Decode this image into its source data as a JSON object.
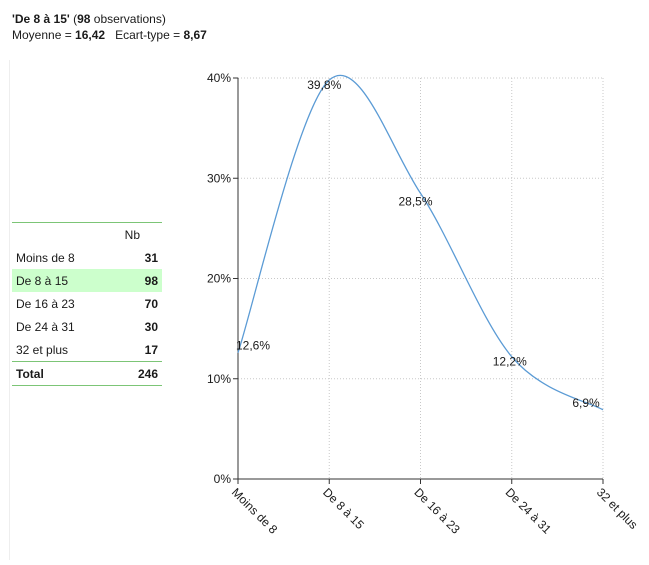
{
  "header": {
    "title_bold": "'De 8 à 15'",
    "title_paren_open": " (",
    "title_count": "98",
    "title_obs": " observations)",
    "mean_label": "Moyenne = ",
    "mean_value": "16,42",
    "sd_label": "Ecart-type = ",
    "sd_value": "8,67"
  },
  "table": {
    "col_header": "Nb",
    "rows": [
      {
        "label": "Moins de 8",
        "value": "31"
      },
      {
        "label": "De 8 à 15",
        "value": "98"
      },
      {
        "label": "De 16 à 23",
        "value": "70"
      },
      {
        "label": "De 24 à 31",
        "value": "30"
      },
      {
        "label": "32 et plus",
        "value": "17"
      }
    ],
    "highlight_index": 1,
    "total_label": "Total",
    "total_value": "246"
  },
  "chart_data": {
    "type": "line",
    "smooth": true,
    "categories": [
      "Moins de 8",
      "De 8 à 15",
      "De 16 à 23",
      "De 24 à 31",
      "32 et plus"
    ],
    "values": [
      12.6,
      39.8,
      28.5,
      12.2,
      6.9
    ],
    "data_labels": [
      "12,6%",
      "39,8%",
      "28,5%",
      "12,2%",
      "6,9%"
    ],
    "y_ticks": [
      0,
      10,
      20,
      30,
      40
    ],
    "y_tick_labels": [
      "0%",
      "10%",
      "20%",
      "30%",
      "40%"
    ],
    "ylim": [
      0,
      40
    ],
    "grid": true,
    "colors": {
      "line": "#5b9bd5",
      "grid": "#c8c8c8",
      "axis": "#333333"
    }
  }
}
